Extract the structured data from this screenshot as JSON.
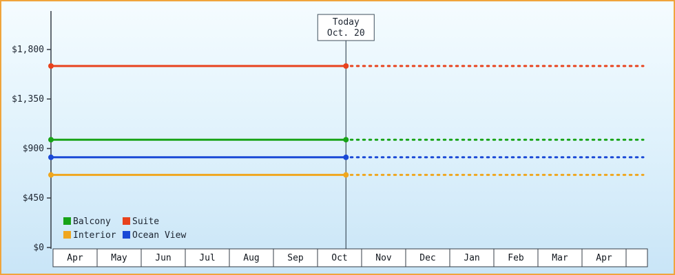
{
  "chart_data": {
    "type": "line",
    "x_categories": [
      "Apr",
      "May",
      "Jun",
      "Jul",
      "Aug",
      "Sep",
      "Oct",
      "Nov",
      "Dec",
      "Jan",
      "Feb",
      "Mar",
      "Apr"
    ],
    "y_ticks": [
      {
        "value": 0,
        "label": "$0"
      },
      {
        "value": 450,
        "label": "$450"
      },
      {
        "value": 900,
        "label": "$900"
      },
      {
        "value": 1350,
        "label": "$1,350"
      },
      {
        "value": 1800,
        "label": "$1,800"
      }
    ],
    "ylim": [
      0,
      2150
    ],
    "grid": false,
    "today": {
      "line1": "Today",
      "line2": "Oct. 20",
      "category_index": 6,
      "day_fraction": 0.645
    },
    "series": [
      {
        "name": "Suite",
        "color": "#e8421c",
        "value": 1650,
        "style_left_of_today": "solid",
        "style_right_of_today": "dotted"
      },
      {
        "name": "Balcony",
        "color": "#17a317",
        "value": 980,
        "style_left_of_today": "solid",
        "style_right_of_today": "dotted"
      },
      {
        "name": "Ocean View",
        "color": "#1a49d6",
        "value": 820,
        "style_left_of_today": "solid",
        "style_right_of_today": "dotted"
      },
      {
        "name": "Interior",
        "color": "#f0a61e",
        "value": 660,
        "style_left_of_today": "solid",
        "style_right_of_today": "dotted"
      }
    ],
    "legend_rows": [
      [
        {
          "name": "Balcony",
          "color": "#17a317"
        },
        {
          "name": "Suite",
          "color": "#e8421c"
        }
      ],
      [
        {
          "name": "Interior",
          "color": "#f0a61e"
        },
        {
          "name": "Ocean View",
          "color": "#1a49d6"
        }
      ]
    ],
    "legend_position": "bottom-left-inside",
    "colors": {
      "frame_border": "#f0a43c",
      "axis": "#333b44",
      "today_line": "#3f4f5c",
      "cell_bg": "#ffffff",
      "text": "#1c2430",
      "background_top": "#f5fcff",
      "background_bottom": "#c9e5f7"
    }
  }
}
